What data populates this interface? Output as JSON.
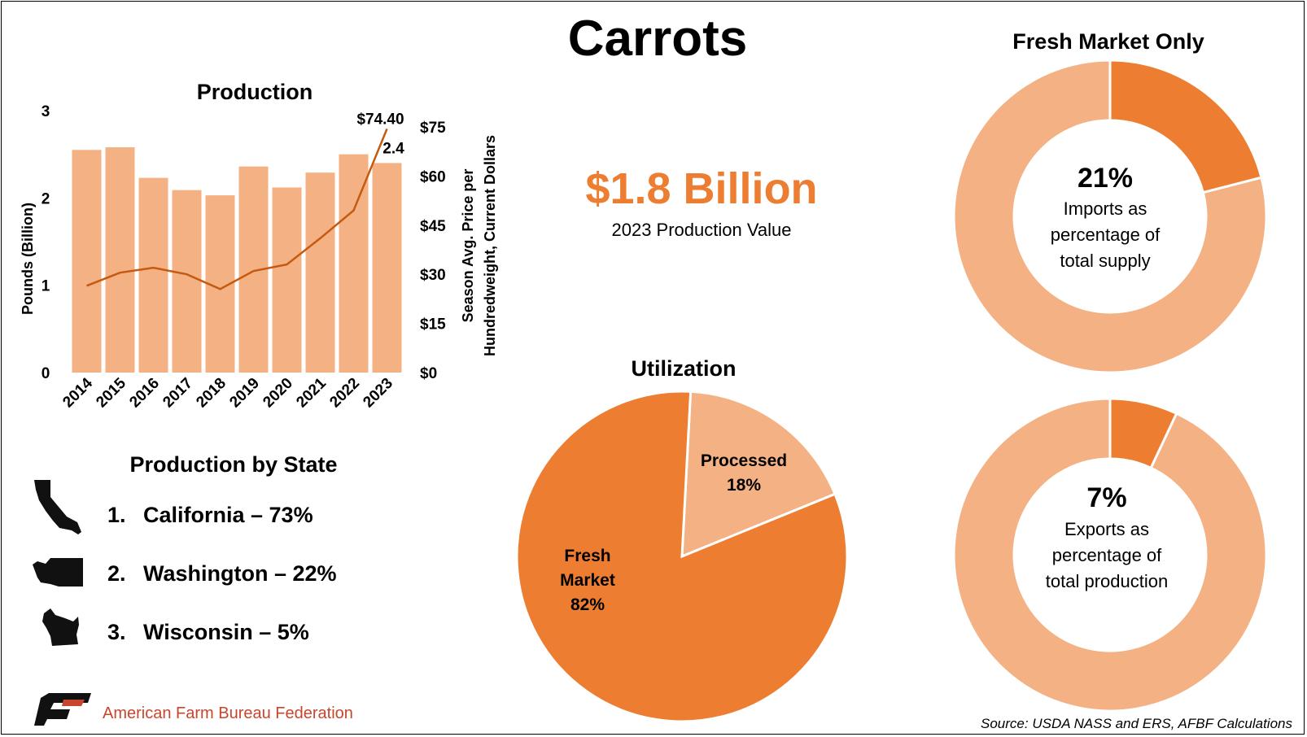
{
  "title": "Carrots",
  "colors": {
    "light": "#f4b183",
    "dark": "#ed7d31",
    "line": "#c55a11",
    "brand_red": "#c8462c"
  },
  "value_box": {
    "amount": "$1.8 Billion",
    "caption": "2023 Production Value"
  },
  "chart_data": [
    {
      "type": "bar",
      "title": "Production",
      "categories": [
        "2014",
        "2015",
        "2016",
        "2017",
        "2018",
        "2019",
        "2020",
        "2021",
        "2022",
        "2023"
      ],
      "series": [
        {
          "axis": "left",
          "kind": "bar",
          "values": [
            2.55,
            2.58,
            2.23,
            2.09,
            2.03,
            2.36,
            2.12,
            2.29,
            2.5,
            2.4
          ]
        },
        {
          "axis": "right",
          "kind": "line",
          "values": [
            26.5,
            30.5,
            32.0,
            30.0,
            25.5,
            31.0,
            33.0,
            41.0,
            49.5,
            74.4
          ]
        }
      ],
      "ylabel": "Pounds (Billion)",
      "y2label": [
        "Season Avg. Price per",
        "Hundredweight, Current Dollars"
      ],
      "ylim": [
        0,
        3
      ],
      "y2lim": [
        0,
        75
      ],
      "yticks": [
        "0",
        "1",
        "2",
        "3"
      ],
      "y2ticks": [
        "$0",
        "$15",
        "$30",
        "$45",
        "$60",
        "$75"
      ],
      "annotations": {
        "last_price": "$74.40",
        "last_bar": "2.4"
      }
    },
    {
      "type": "pie",
      "title": "Utilization",
      "slices": [
        {
          "label": [
            "Processed",
            "18%"
          ],
          "value": 18
        },
        {
          "label": [
            "Fresh",
            "Market",
            "82%"
          ],
          "value": 82
        }
      ]
    },
    {
      "type": "pie",
      "title": "Fresh Market Only",
      "slices": [
        {
          "value": 21
        },
        {
          "value": 79
        }
      ],
      "center": {
        "pct": "21%",
        "lines": [
          "Imports as",
          "percentage of",
          "total supply"
        ]
      }
    },
    {
      "type": "pie",
      "slices": [
        {
          "value": 7
        },
        {
          "value": 93
        }
      ],
      "center": {
        "pct": "7%",
        "lines": [
          "Exports as",
          "percentage of",
          "total production"
        ]
      }
    }
  ],
  "states": {
    "title": "Production by State",
    "items": [
      {
        "rank": "1.",
        "text": "California – 73%",
        "icon": "california-icon"
      },
      {
        "rank": "2.",
        "text": "Washington – 22%",
        "icon": "washington-icon"
      },
      {
        "rank": "3.",
        "text": "Wisconsin – 5%",
        "icon": "wisconsin-icon"
      }
    ]
  },
  "footer": {
    "org": "American Farm Bureau Federation",
    "source": "Source: USDA NASS and ERS, AFBF Calculations"
  }
}
